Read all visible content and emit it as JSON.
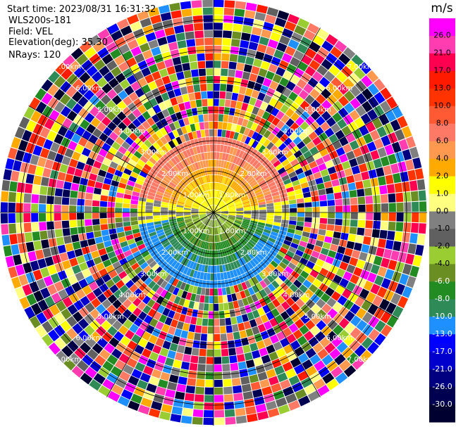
{
  "header": {
    "start_time": "Start time: 2023/08/31 16:31:32",
    "site": "WLS200s-181",
    "field": "Field: VEL",
    "elevation": "Elevation(deg): 35.30",
    "nrays": "NRays: 120"
  },
  "colorbar": {
    "unit": "m/s",
    "ticks": [
      "26.0",
      "21.0",
      "17.0",
      "13.0",
      "10.0",
      "8.0",
      "6.0",
      "4.0",
      "2.0",
      "1.0",
      "0.0",
      "-1.0",
      "-2.0",
      "-4.0",
      "-6.0",
      "-8.0",
      "-10.0",
      "-13.0",
      "-17.0",
      "-21.0",
      "-26.0",
      "-30.0"
    ],
    "colors": [
      "#ff00ff",
      "#ff3cb0",
      "#ff0050",
      "#ff1a00",
      "#ff3300",
      "#ff5a33",
      "#ff7a66",
      "#ff9950",
      "#ffaa00",
      "#ffff00",
      "#ffff80",
      "#808080",
      "#606060",
      "#9acd32",
      "#6b8e23",
      "#228b22",
      "#2e8b57",
      "#1e90ff",
      "#0000ff",
      "#0000cd",
      "#000080",
      "#000050",
      "#000030"
    ]
  },
  "chart_data": {
    "type": "ppi",
    "field": "VEL",
    "nrays": 120,
    "range_ring_labels_km": [
      "1.00km",
      "2.00km",
      "3.00km",
      "4.00km",
      "5.00km",
      "6.00km",
      "7.00km"
    ],
    "pattern": {
      "inner_positive_sector": "north, values 1 to 17 m/s",
      "inner_negative_sector": "south, values -1 to -10 m/s",
      "outer_region": "noise, random values across full scale"
    }
  }
}
